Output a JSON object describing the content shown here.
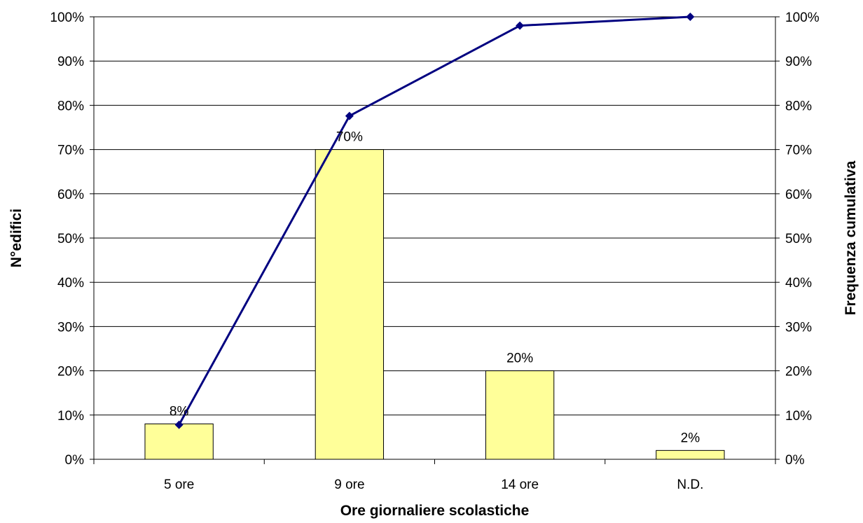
{
  "chart_data": {
    "type": "bar",
    "categories": [
      "5 ore",
      "9 ore",
      "14 ore",
      "N.D."
    ],
    "series": [
      {
        "type": "bar",
        "values": [
          8,
          70,
          20,
          2
        ],
        "data_labels": [
          "8%",
          "70%",
          "20%",
          "2%"
        ],
        "axis": "left"
      },
      {
        "type": "line",
        "values": [
          7.8,
          77.6,
          98.0,
          100.0
        ],
        "axis": "right"
      }
    ],
    "xlabel": "Ore giornaliere scolastiche",
    "ylabel": "N°edifici",
    "ylabel_right": "Frequenza cumulativa",
    "ylim": [
      0,
      100
    ],
    "ylim_right": [
      0,
      100
    ],
    "yticks": [
      "0%",
      "10%",
      "20%",
      "30%",
      "40%",
      "50%",
      "60%",
      "70%",
      "80%",
      "90%",
      "100%"
    ],
    "yticks_right": [
      "0%",
      "10%",
      "20%",
      "30%",
      "40%",
      "50%",
      "60%",
      "70%",
      "80%",
      "90%",
      "100%"
    ],
    "grid": true,
    "legend": "none",
    "colors": {
      "bar_fill": "#ffff99",
      "bar_stroke": "#000000",
      "line": "#000080",
      "grid": "#000000"
    }
  }
}
